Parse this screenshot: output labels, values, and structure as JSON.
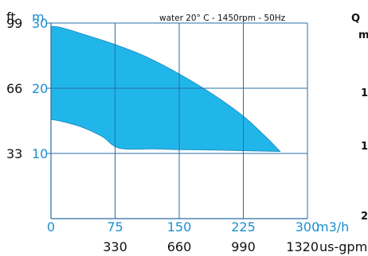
{
  "chart_data": {
    "type": "area",
    "title": "water 20° C - 1450rpm - 50Hz",
    "x_unit": "m3/h",
    "x2_unit": "us-gpm",
    "y_left_unit": "ft",
    "y_unit": "m",
    "xlim": [
      0,
      300
    ],
    "ylim": [
      0,
      30
    ],
    "x_ticks": [
      0,
      75,
      150,
      225,
      300
    ],
    "x2_ticks": [
      "330",
      "660",
      "990",
      "1320"
    ],
    "y_ticks": [
      10,
      20,
      30
    ],
    "y_left_ticks": [
      "33",
      "66",
      "99"
    ],
    "grid": true,
    "series": [
      {
        "upper": {
          "x": [
            0,
            12,
            40,
            75,
            110,
            150,
            190,
            225,
            250,
            268
          ],
          "y": [
            29.5,
            29.3,
            28.2,
            26.7,
            24.9,
            22.2,
            19.0,
            15.7,
            12.7,
            10.3
          ]
        },
        "lower": {
          "x": [
            0,
            10,
            35,
            60,
            80,
            120,
            150,
            200,
            268
          ],
          "y": [
            15.2,
            15.0,
            14.1,
            12.6,
            10.8,
            10.7,
            10.6,
            10.5,
            10.3
          ]
        }
      }
    ]
  },
  "clipped_text": [
    "Q",
    "m",
    "1",
    "1",
    "2"
  ],
  "colors": {
    "fill": "#21b6ea",
    "stroke": "#1f8fc4",
    "grid": "#2a6ea6",
    "axis_blue": "#1b8fd0",
    "text": "#111111"
  }
}
